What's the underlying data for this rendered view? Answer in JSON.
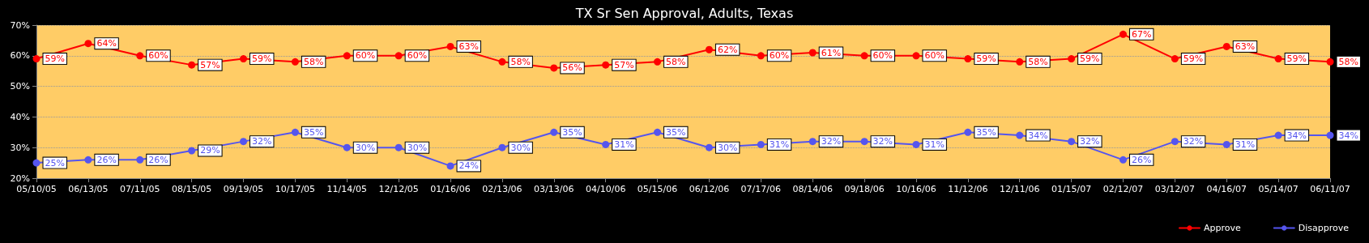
{
  "chart_data": {
    "type": "line",
    "title": "TX Sr Sen Approval, Adults, Texas",
    "categories": [
      "05/10/05",
      "06/13/05",
      "07/11/05",
      "08/15/05",
      "09/19/05",
      "10/17/05",
      "11/14/05",
      "12/12/05",
      "01/16/06",
      "02/13/06",
      "03/13/06",
      "04/10/06",
      "05/15/06",
      "06/12/06",
      "07/17/06",
      "08/14/06",
      "09/18/06",
      "10/16/06",
      "11/12/06",
      "12/11/06",
      "01/15/07",
      "02/12/07",
      "03/12/07",
      "04/16/07",
      "05/14/07",
      "06/11/07"
    ],
    "series": [
      {
        "name": "Approve",
        "color": "#ff0000",
        "values": [
          59,
          64,
          60,
          57,
          59,
          58,
          60,
          60,
          63,
          58,
          56,
          57,
          58,
          62,
          60,
          61,
          60,
          60,
          59,
          58,
          59,
          67,
          59,
          63,
          59,
          58
        ],
        "value_labels": [
          "59%",
          "64%",
          "60%",
          "57%",
          "59%",
          "58%",
          "60%",
          "60%",
          "63%",
          "58%",
          "56%",
          "57%",
          "58%",
          "62%",
          "60%",
          "61%",
          "60%",
          "60%",
          "59%",
          "58%",
          "59%",
          "67%",
          "59%",
          "63%",
          "59%",
          "58%"
        ]
      },
      {
        "name": "Disapprove",
        "color": "#5555ee",
        "values": [
          25,
          26,
          26,
          29,
          32,
          35,
          30,
          30,
          24,
          30,
          35,
          31,
          35,
          30,
          31,
          32,
          32,
          31,
          35,
          34,
          32,
          26,
          32,
          31,
          34,
          34
        ],
        "value_labels": [
          "25%",
          "26%",
          "26%",
          "29%",
          "32%",
          "35%",
          "30%",
          "30%",
          "24%",
          "30%",
          "35%",
          "31%",
          "35%",
          "30%",
          "31%",
          "32%",
          "32%",
          "31%",
          "35%",
          "34%",
          "32%",
          "26%",
          "32%",
          "31%",
          "34%",
          "34%"
        ]
      }
    ],
    "ylim": [
      20,
      70
    ],
    "yticks": [
      {
        "value": 20,
        "label": "20%"
      },
      {
        "value": 30,
        "label": "30%"
      },
      {
        "value": 40,
        "label": "40%"
      },
      {
        "value": 50,
        "label": "50%"
      },
      {
        "value": 60,
        "label": "60%"
      },
      {
        "value": 70,
        "label": "70%"
      }
    ],
    "grid": "y",
    "legend": "bottom right",
    "marker": "circle",
    "line_style": "solid"
  }
}
